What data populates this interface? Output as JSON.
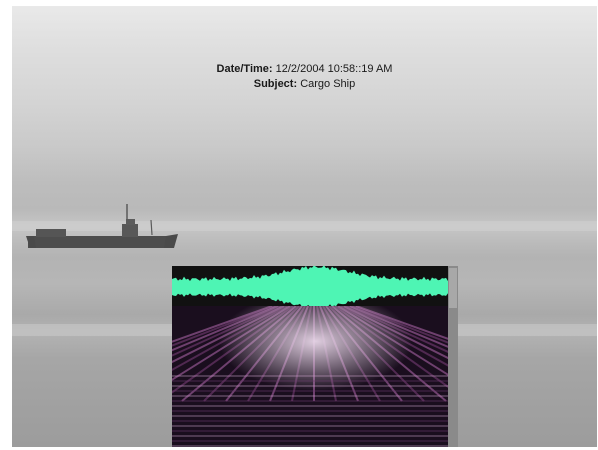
{
  "caption": {
    "datetime_label": "Date/Time:",
    "datetime_value": "12/2/2004 10:58::19 AM",
    "subject_label": "Subject:",
    "subject_value": "Cargo Ship"
  },
  "colors": {
    "waveform": "#4ef5b4",
    "spectrogram_background": "#1a0e1e",
    "spectrogram_energy": "#ead8ea"
  },
  "icons": {
    "ship": "cargo-ship-silhouette"
  }
}
